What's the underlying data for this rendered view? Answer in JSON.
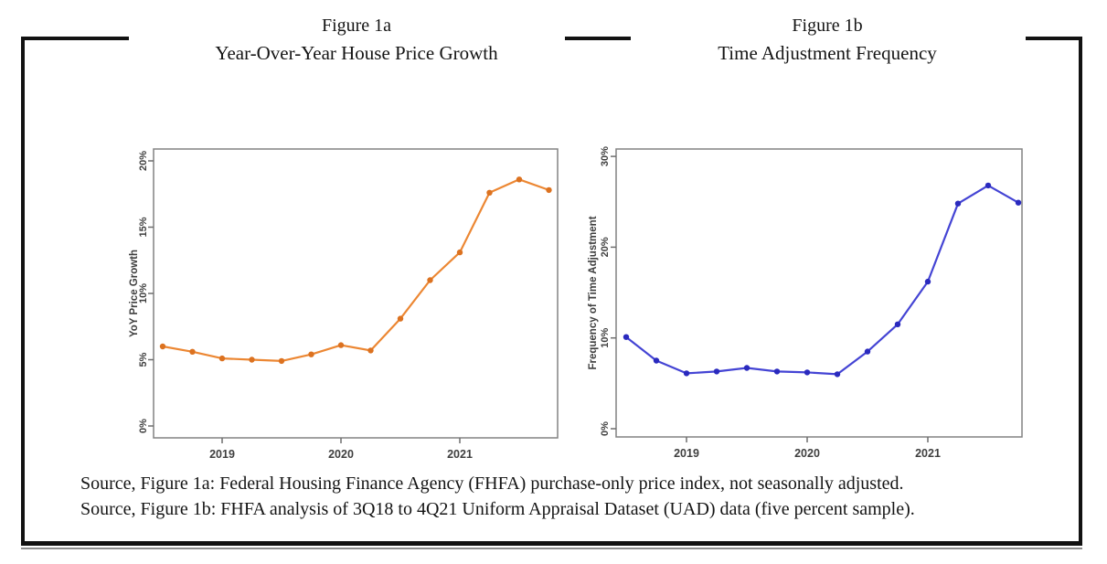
{
  "figures": [
    {
      "label": "Figure 1a",
      "title": "Year-Over-Year House Price Growth"
    },
    {
      "label": "Figure 1b",
      "title": "Time Adjustment Frequency"
    }
  ],
  "sources": {
    "figure_1a": "Source, Figure 1a: Federal Housing Finance Agency (FHFA) purchase-only price index, not seasonally adjusted.",
    "figure_1b": "Source, Figure 1b: FHFA analysis of 3Q18 to 4Q21 Uniform Appraisal Dataset (UAD) data (five percent sample)."
  },
  "chart_data": [
    {
      "type": "line",
      "panel_id": "1a",
      "title": "Year-Over-Year House Price Growth",
      "series_name": "YoY Price Growth",
      "x": [
        "3Q18",
        "4Q18",
        "1Q19",
        "2Q19",
        "3Q19",
        "4Q19",
        "1Q20",
        "2Q20",
        "3Q20",
        "4Q20",
        "1Q21",
        "2Q21",
        "3Q21",
        "4Q21"
      ],
      "values": [
        6.0,
        5.6,
        5.1,
        5.0,
        4.9,
        5.4,
        6.1,
        5.7,
        8.1,
        11.0,
        13.1,
        17.6,
        18.6,
        17.8
      ],
      "xlabel": "",
      "ylabel": "YoY Price Growth",
      "ylim": [
        0,
        20
      ],
      "y_tick_values": [
        0,
        5,
        10,
        15,
        20
      ],
      "y_tick_labels": [
        "0%",
        "5%",
        "10%",
        "15%",
        "20%"
      ],
      "x_tick_labels": [
        "2019",
        "2020",
        "2021"
      ],
      "x_tick_indices": [
        2,
        6,
        10
      ],
      "grid": false,
      "legend": "none",
      "line_color": "#EC8733",
      "marker_color": "#DC7220"
    },
    {
      "type": "line",
      "panel_id": "1b",
      "title": "Time Adjustment Frequency",
      "series_name": "Frequency of Time Adjustment",
      "x": [
        "3Q18",
        "4Q18",
        "1Q19",
        "2Q19",
        "3Q19",
        "4Q19",
        "1Q20",
        "2Q20",
        "3Q20",
        "4Q20",
        "1Q21",
        "2Q21",
        "3Q21",
        "4Q21"
      ],
      "values": [
        10.1,
        7.5,
        6.1,
        6.3,
        6.7,
        6.3,
        6.2,
        6.0,
        8.5,
        11.5,
        16.2,
        24.8,
        26.8,
        24.9
      ],
      "xlabel": "",
      "ylabel": "Frequency of Time Adjustment",
      "ylim": [
        0,
        30
      ],
      "y_tick_values": [
        0,
        10,
        20,
        30
      ],
      "y_tick_labels": [
        "0%",
        "10%",
        "20%",
        "30%"
      ],
      "x_tick_labels": [
        "2019",
        "2020",
        "2021"
      ],
      "x_tick_indices": [
        2,
        6,
        10
      ],
      "grid": false,
      "legend": "none",
      "line_color": "#4444D4",
      "marker_color": "#2A2ABE"
    }
  ]
}
